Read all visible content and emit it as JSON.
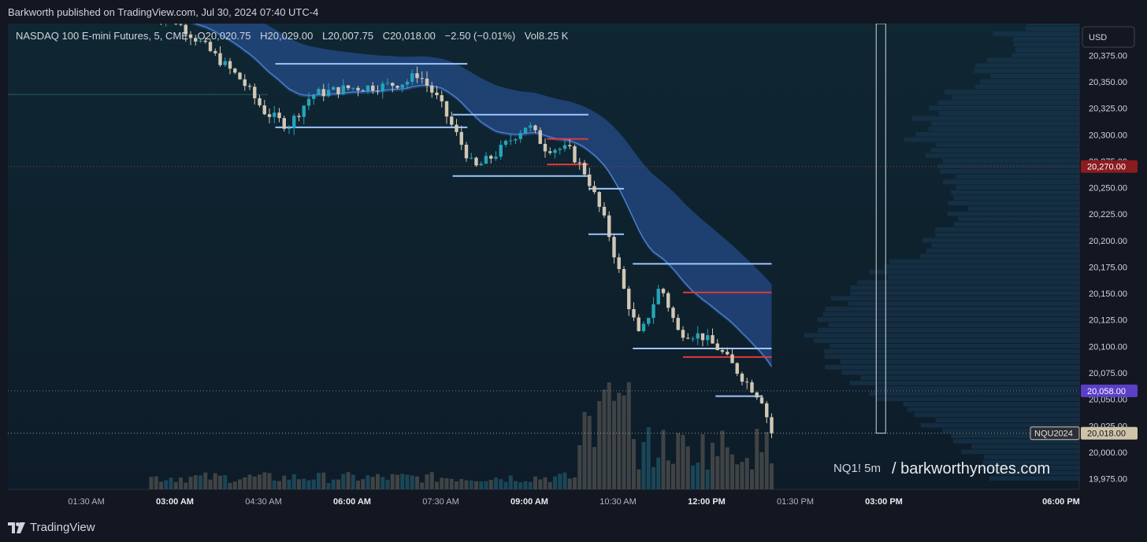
{
  "header": {
    "published": "Barkworth published on TradingView.com, Jul 30, 2024 07:40 UTC-4"
  },
  "legend": {
    "symbol": "NASDAQ 100 E-mini Futures, 5, CME",
    "o_label": "O",
    "o": "20,020.75",
    "h_label": "H",
    "h": "20,029.00",
    "l_label": "L",
    "l": "20,007.75",
    "c_label": "C",
    "c": "20,018.00",
    "change": "−2.50 (−0.01%)",
    "vol_label": "Vol",
    "vol": "8.25 K"
  },
  "currency_button": "USD",
  "footer": {
    "brand": "TradingView"
  },
  "watermark": {
    "tf": "NQ1! 5m",
    "site": "/ barkworthynotes.com"
  },
  "colors": {
    "bg": "#131722",
    "pane": "#0e1f2b",
    "up": "#26a3b8",
    "down": "#d1c7b4",
    "band": "#2b5aa8",
    "level_blue": "#9ec5ff",
    "level_red": "#e0393e",
    "badge_red": "#8a1c1f",
    "badge_purple": "#5b3fc7",
    "badge_tan": "#cfc3a8"
  },
  "chart_data": {
    "type": "candlestick",
    "y_ticks": [
      "20,375.00",
      "20,350.00",
      "20,325.00",
      "20,300.00",
      "20,275.00",
      "20,250.00",
      "20,225.00",
      "20,200.00",
      "20,175.00",
      "20,150.00",
      "20,125.00",
      "20,100.00",
      "20,075.00",
      "20,050.00",
      "20,025.00",
      "20,000.00",
      "19,975.00"
    ],
    "y_tick_values": [
      20375,
      20350,
      20325,
      20300,
      20275,
      20250,
      20225,
      20200,
      20175,
      20150,
      20125,
      20100,
      20075,
      20050,
      20025,
      20000,
      19975
    ],
    "ylim": [
      19965,
      20405
    ],
    "x_ticks": [
      {
        "label": "01:30 AM",
        "hour": 1.5,
        "bold": false
      },
      {
        "label": "03:00 AM",
        "hour": 3.0,
        "bold": true
      },
      {
        "label": "04:30 AM",
        "hour": 4.5,
        "bold": false
      },
      {
        "label": "06:00 AM",
        "hour": 6.0,
        "bold": true
      },
      {
        "label": "07:30 AM",
        "hour": 7.5,
        "bold": false
      },
      {
        "label": "09:00 AM",
        "hour": 9.0,
        "bold": true
      },
      {
        "label": "10:30 AM",
        "hour": 10.5,
        "bold": false
      },
      {
        "label": "12:00 PM",
        "hour": 12.0,
        "bold": true
      },
      {
        "label": "01:30 PM",
        "hour": 13.5,
        "bold": false
      },
      {
        "label": "03:00 PM",
        "hour": 15.0,
        "bold": true
      },
      {
        "label": "06:00 PM",
        "hour": 18.0,
        "bold": true
      }
    ],
    "badges": [
      {
        "label": "20,270.00",
        "price": 20270,
        "kind": "red"
      },
      {
        "label": "20,058.00",
        "price": 20058,
        "kind": "purple"
      },
      {
        "label": "20,018.00",
        "price": 20018,
        "kind": "tan",
        "tag": "NQU2024"
      }
    ],
    "levels": [
      {
        "h0": 4.7,
        "h1": 7.95,
        "price": 20367,
        "color": "blue"
      },
      {
        "h0": 4.7,
        "h1": 7.95,
        "price": 20307,
        "color": "blue"
      },
      {
        "h0": 7.7,
        "h1": 10.0,
        "price": 20319,
        "color": "blue"
      },
      {
        "h0": 7.7,
        "h1": 10.0,
        "price": 20261,
        "color": "blue"
      },
      {
        "h0": 9.3,
        "h1": 10.0,
        "price": 20296,
        "color": "red"
      },
      {
        "h0": 9.3,
        "h1": 10.0,
        "price": 20272,
        "color": "red"
      },
      {
        "h0": 10.0,
        "h1": 10.6,
        "price": 20249,
        "color": "blue"
      },
      {
        "h0": 10.0,
        "h1": 10.6,
        "price": 20206,
        "color": "blue"
      },
      {
        "h0": 10.75,
        "h1": 13.1,
        "price": 20178,
        "color": "blue"
      },
      {
        "h0": 10.75,
        "h1": 13.1,
        "price": 20098,
        "color": "blue"
      },
      {
        "h0": 11.6,
        "h1": 13.1,
        "price": 20151,
        "color": "red"
      },
      {
        "h0": 11.6,
        "h1": 13.1,
        "price": 20090,
        "color": "red"
      },
      {
        "h0": 12.15,
        "h1": 12.95,
        "price": 20053,
        "color": "blue"
      }
    ],
    "session_marker_hour": 14.95
  }
}
